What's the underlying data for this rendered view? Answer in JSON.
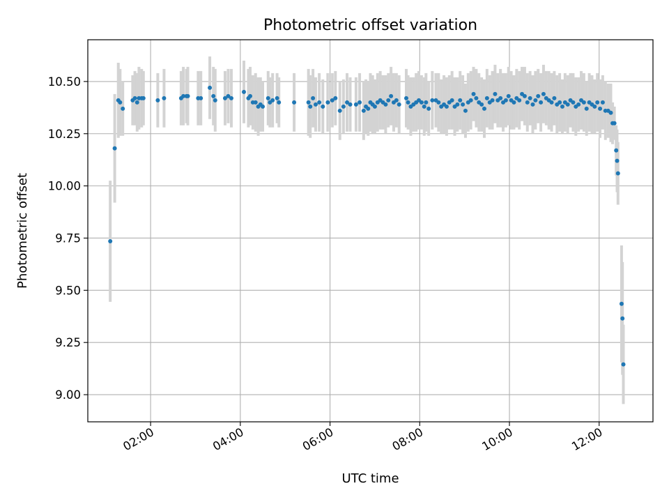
{
  "chart_data": {
    "type": "scatter",
    "title": "Photometric offset variation",
    "xlabel": "UTC time",
    "ylabel": "Photometric offset",
    "x_ticks": [
      "02:00",
      "04:00",
      "06:00",
      "08:00",
      "10:00",
      "12:00"
    ],
    "x_tick_values": [
      2,
      4,
      6,
      8,
      10,
      12
    ],
    "y_ticks": [
      "9.00",
      "9.25",
      "9.50",
      "9.75",
      "10.00",
      "10.25",
      "10.50"
    ],
    "y_tick_values": [
      9.0,
      9.25,
      9.5,
      9.75,
      10.0,
      10.25,
      10.5
    ],
    "xlim": [
      0.6,
      13.2
    ],
    "ylim": [
      8.87,
      10.7
    ],
    "grid": true,
    "colors": {
      "point": "#1f77b4",
      "errorbar": "#d3d3d3",
      "grid": "#b0b0b0"
    },
    "series": [
      {
        "points": [
          [
            1.1,
            9.735,
            0.29
          ],
          [
            1.2,
            10.18,
            0.26
          ],
          [
            1.28,
            10.41,
            0.18
          ],
          [
            1.32,
            10.4,
            0.16
          ],
          [
            1.38,
            10.37,
            0.13
          ],
          [
            1.6,
            10.41,
            0.12
          ],
          [
            1.65,
            10.42,
            0.13
          ],
          [
            1.7,
            10.4,
            0.14
          ],
          [
            1.74,
            10.42,
            0.15
          ],
          [
            1.8,
            10.42,
            0.14
          ],
          [
            1.84,
            10.42,
            0.13
          ],
          [
            2.16,
            10.41,
            0.13
          ],
          [
            2.3,
            10.42,
            0.14
          ],
          [
            2.68,
            10.42,
            0.13
          ],
          [
            2.73,
            10.43,
            0.14
          ],
          [
            2.8,
            10.43,
            0.13
          ],
          [
            2.83,
            10.43,
            0.14
          ],
          [
            3.06,
            10.42,
            0.13
          ],
          [
            3.12,
            10.42,
            0.13
          ],
          [
            3.32,
            10.47,
            0.15
          ],
          [
            3.4,
            10.43,
            0.14
          ],
          [
            3.44,
            10.41,
            0.15
          ],
          [
            3.66,
            10.42,
            0.13
          ],
          [
            3.73,
            10.43,
            0.13
          ],
          [
            3.8,
            10.42,
            0.14
          ],
          [
            4.08,
            10.45,
            0.15
          ],
          [
            4.18,
            10.42,
            0.14
          ],
          [
            4.22,
            10.43,
            0.14
          ],
          [
            4.28,
            10.4,
            0.13
          ],
          [
            4.34,
            10.4,
            0.14
          ],
          [
            4.4,
            10.38,
            0.14
          ],
          [
            4.45,
            10.39,
            0.13
          ],
          [
            4.5,
            10.38,
            0.12
          ],
          [
            4.62,
            10.42,
            0.13
          ],
          [
            4.66,
            10.4,
            0.12
          ],
          [
            4.72,
            10.41,
            0.13
          ],
          [
            4.82,
            10.42,
            0.12
          ],
          [
            4.86,
            10.4,
            0.12
          ],
          [
            5.2,
            10.4,
            0.14
          ],
          [
            5.52,
            10.4,
            0.16
          ],
          [
            5.56,
            10.38,
            0.15
          ],
          [
            5.62,
            10.42,
            0.14
          ],
          [
            5.68,
            10.39,
            0.13
          ],
          [
            5.76,
            10.4,
            0.14
          ],
          [
            5.84,
            10.38,
            0.13
          ],
          [
            5.95,
            10.4,
            0.14
          ],
          [
            6.05,
            10.41,
            0.13
          ],
          [
            6.12,
            10.42,
            0.13
          ],
          [
            6.22,
            10.36,
            0.14
          ],
          [
            6.3,
            10.38,
            0.13
          ],
          [
            6.38,
            10.4,
            0.14
          ],
          [
            6.45,
            10.39,
            0.13
          ],
          [
            6.58,
            10.39,
            0.13
          ],
          [
            6.66,
            10.4,
            0.14
          ],
          [
            6.75,
            10.36,
            0.14
          ],
          [
            6.8,
            10.38,
            0.13
          ],
          [
            6.85,
            10.37,
            0.13
          ],
          [
            6.9,
            10.4,
            0.14
          ],
          [
            6.95,
            10.39,
            0.14
          ],
          [
            7.0,
            10.38,
            0.13
          ],
          [
            7.06,
            10.4,
            0.14
          ],
          [
            7.12,
            10.41,
            0.14
          ],
          [
            7.18,
            10.4,
            0.13
          ],
          [
            7.24,
            10.39,
            0.14
          ],
          [
            7.3,
            10.41,
            0.13
          ],
          [
            7.36,
            10.43,
            0.14
          ],
          [
            7.42,
            10.4,
            0.14
          ],
          [
            7.48,
            10.41,
            0.13
          ],
          [
            7.54,
            10.39,
            0.14
          ],
          [
            7.7,
            10.42,
            0.14
          ],
          [
            7.74,
            10.4,
            0.13
          ],
          [
            7.8,
            10.38,
            0.14
          ],
          [
            7.86,
            10.39,
            0.13
          ],
          [
            7.92,
            10.4,
            0.14
          ],
          [
            7.98,
            10.41,
            0.14
          ],
          [
            8.04,
            10.4,
            0.13
          ],
          [
            8.1,
            10.38,
            0.14
          ],
          [
            8.14,
            10.4,
            0.14
          ],
          [
            8.2,
            10.37,
            0.13
          ],
          [
            8.28,
            10.41,
            0.14
          ],
          [
            8.36,
            10.41,
            0.13
          ],
          [
            8.42,
            10.4,
            0.14
          ],
          [
            8.48,
            10.38,
            0.13
          ],
          [
            8.54,
            10.39,
            0.14
          ],
          [
            8.6,
            10.38,
            0.14
          ],
          [
            8.66,
            10.4,
            0.13
          ],
          [
            8.72,
            10.41,
            0.14
          ],
          [
            8.78,
            10.38,
            0.14
          ],
          [
            8.84,
            10.39,
            0.13
          ],
          [
            8.9,
            10.41,
            0.14
          ],
          [
            8.96,
            10.39,
            0.14
          ],
          [
            9.02,
            10.36,
            0.13
          ],
          [
            9.08,
            10.4,
            0.14
          ],
          [
            9.14,
            10.41,
            0.14
          ],
          [
            9.2,
            10.44,
            0.13
          ],
          [
            9.26,
            10.42,
            0.14
          ],
          [
            9.32,
            10.4,
            0.14
          ],
          [
            9.38,
            10.39,
            0.13
          ],
          [
            9.44,
            10.37,
            0.14
          ],
          [
            9.5,
            10.42,
            0.14
          ],
          [
            9.56,
            10.4,
            0.13
          ],
          [
            9.62,
            10.41,
            0.14
          ],
          [
            9.68,
            10.44,
            0.14
          ],
          [
            9.74,
            10.41,
            0.13
          ],
          [
            9.8,
            10.42,
            0.14
          ],
          [
            9.86,
            10.4,
            0.14
          ],
          [
            9.92,
            10.41,
            0.13
          ],
          [
            9.98,
            10.43,
            0.14
          ],
          [
            10.04,
            10.41,
            0.14
          ],
          [
            10.1,
            10.4,
            0.13
          ],
          [
            10.16,
            10.42,
            0.14
          ],
          [
            10.22,
            10.41,
            0.14
          ],
          [
            10.28,
            10.44,
            0.13
          ],
          [
            10.34,
            10.43,
            0.14
          ],
          [
            10.4,
            10.4,
            0.14
          ],
          [
            10.46,
            10.42,
            0.13
          ],
          [
            10.52,
            10.39,
            0.14
          ],
          [
            10.58,
            10.41,
            0.14
          ],
          [
            10.64,
            10.43,
            0.13
          ],
          [
            10.7,
            10.4,
            0.14
          ],
          [
            10.76,
            10.44,
            0.14
          ],
          [
            10.82,
            10.42,
            0.13
          ],
          [
            10.88,
            10.41,
            0.14
          ],
          [
            10.94,
            10.4,
            0.14
          ],
          [
            11.0,
            10.42,
            0.13
          ],
          [
            11.06,
            10.39,
            0.14
          ],
          [
            11.12,
            10.4,
            0.14
          ],
          [
            11.18,
            10.38,
            0.13
          ],
          [
            11.24,
            10.4,
            0.14
          ],
          [
            11.3,
            10.39,
            0.14
          ],
          [
            11.36,
            10.41,
            0.13
          ],
          [
            11.42,
            10.4,
            0.14
          ],
          [
            11.48,
            10.38,
            0.14
          ],
          [
            11.54,
            10.39,
            0.13
          ],
          [
            11.6,
            10.41,
            0.14
          ],
          [
            11.66,
            10.4,
            0.14
          ],
          [
            11.72,
            10.37,
            0.13
          ],
          [
            11.78,
            10.4,
            0.14
          ],
          [
            11.84,
            10.39,
            0.14
          ],
          [
            11.9,
            10.38,
            0.13
          ],
          [
            11.96,
            10.4,
            0.14
          ],
          [
            12.02,
            10.37,
            0.14
          ],
          [
            12.08,
            10.4,
            0.13
          ],
          [
            12.14,
            10.36,
            0.14
          ],
          [
            12.2,
            10.36,
            0.13
          ],
          [
            12.26,
            10.35,
            0.14
          ],
          [
            12.3,
            10.3,
            0.1
          ],
          [
            12.34,
            10.3,
            0.08
          ],
          [
            12.38,
            10.17,
            0.12
          ],
          [
            12.4,
            10.12,
            0.15
          ],
          [
            12.42,
            10.06,
            0.15
          ],
          [
            12.5,
            9.435,
            0.28
          ],
          [
            12.52,
            9.365,
            0.27
          ],
          [
            12.54,
            9.145,
            0.19
          ]
        ]
      }
    ]
  }
}
